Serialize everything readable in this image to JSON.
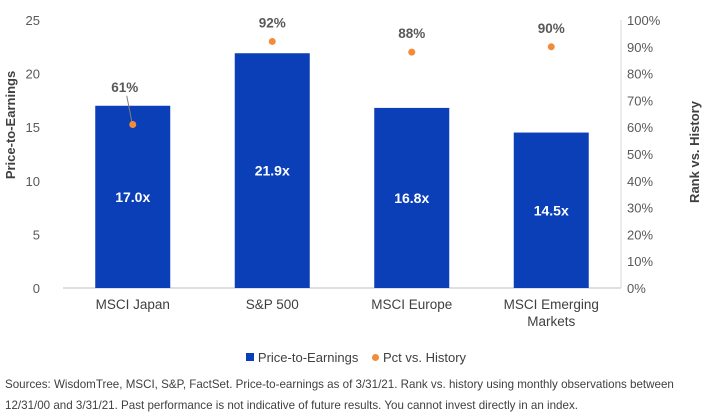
{
  "chart_data": {
    "type": "bar",
    "categories": [
      "MSCI Japan",
      "S&P 500",
      "MSCI Europe",
      "MSCI Emerging Markets"
    ],
    "category_lines": [
      [
        "MSCI Japan"
      ],
      [
        "S&P 500"
      ],
      [
        "MSCI Europe"
      ],
      [
        "MSCI Emerging",
        "Markets"
      ]
    ],
    "series": [
      {
        "name": "Price-to-Earnings",
        "type": "bar",
        "axis": "left",
        "values": [
          17.0,
          21.9,
          16.8,
          14.5
        ],
        "labels": [
          "17.0x",
          "21.9x",
          "16.8x",
          "14.5x"
        ],
        "color": "#0b3fb8"
      },
      {
        "name": "Pct vs. History",
        "type": "scatter",
        "axis": "right",
        "values": [
          61,
          92,
          88,
          90
        ],
        "labels": [
          "61%",
          "92%",
          "88%",
          "90%"
        ],
        "color": "#f28c38"
      }
    ],
    "ylabel": "Price-to-Earnings",
    "ylim": [
      0,
      25
    ],
    "yticks": [
      "0",
      "5",
      "10",
      "15",
      "20",
      "25"
    ],
    "y2label": "Rank vs. History",
    "y2lim": [
      0,
      100
    ],
    "y2ticks": [
      "0%",
      "10%",
      "20%",
      "30%",
      "40%",
      "50%",
      "60%",
      "70%",
      "80%",
      "90%",
      "100%"
    ],
    "legend_position": "bottom",
    "grid": false
  },
  "source_note": "Sources: WisdomTree, MSCI, S&P, FactSet. Price-to-earnings as of 3/31/21. Rank vs. history using monthly observations between 12/31/00 and 3/31/21. Past performance is not indicative of future results. You cannot invest directly in an index."
}
